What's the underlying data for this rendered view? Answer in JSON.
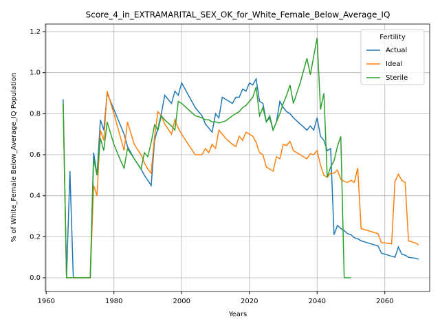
{
  "chart_data": {
    "type": "line",
    "title": "Score_4_in_EXTRAMARITAL_SEX_OK_for_White_Female_Below_Average_IQ",
    "xlabel": "Years",
    "ylabel": "% of White_Female Below_Average_IQ Population",
    "legend_title": "Fertility",
    "legend": "upper right",
    "x": [
      1965,
      1966,
      1967,
      1968,
      1969,
      1973,
      1974,
      1975,
      1976,
      1977,
      1978,
      1980,
      1982,
      1983,
      1984,
      1986,
      1988,
      1989,
      1990,
      1991,
      1992,
      1993,
      1994,
      1995,
      1997,
      1998,
      1999,
      2000,
      2002,
      2004,
      2006,
      2007,
      2008,
      2009,
      2010,
      2011,
      2012,
      2013,
      2015,
      2016,
      2017,
      2018,
      2019,
      2020,
      2021,
      2022,
      2023,
      2024,
      2025,
      2026,
      2027,
      2028,
      2029,
      2030,
      2031,
      2032,
      2033,
      2035,
      2037,
      2038,
      2039,
      2040,
      2041,
      2042,
      2043,
      2044,
      2045,
      2046,
      2047,
      2048,
      2049,
      2050,
      2051,
      2052,
      2053,
      2055,
      2058,
      2059,
      2060,
      2062,
      2063,
      2064,
      2065,
      2066,
      2067,
      2069,
      2070
    ],
    "series": [
      {
        "name": "Actual",
        "color": "#1f77b4",
        "values": [
          0.87,
          0,
          0.52,
          0,
          0,
          0,
          0.61,
          0.5,
          0.77,
          0.72,
          0.9,
          0.82,
          0.74,
          0.7,
          0.64,
          0.58,
          0.53,
          0.5,
          0.475,
          0.45,
          0.67,
          0.73,
          0.8,
          0.89,
          0.85,
          0.91,
          0.89,
          0.95,
          0.89,
          0.83,
          0.79,
          0.75,
          0.73,
          0.71,
          0.8,
          0.78,
          0.88,
          0.87,
          0.85,
          0.88,
          0.88,
          0.92,
          0.91,
          0.95,
          0.94,
          0.97,
          0.86,
          0.85,
          0.76,
          0.78,
          0.72,
          0.76,
          0.86,
          0.83,
          0.81,
          0.8,
          0.78,
          0.75,
          0.72,
          0.74,
          0.72,
          0.78,
          0.69,
          0.67,
          0.62,
          0.63,
          0.21,
          0.255,
          0.24,
          0.23,
          0.215,
          0.21,
          0.195,
          0.19,
          0.18,
          0.17,
          0.155,
          0.12,
          0.115,
          0.105,
          0.1,
          0.15,
          0.115,
          0.11,
          0.1,
          0.095,
          0.09
        ]
      },
      {
        "name": "Ideal",
        "color": "#ff7f0e",
        "values": [
          0.85,
          0,
          0,
          0,
          0,
          0,
          0.45,
          0.4,
          0.72,
          0.67,
          0.91,
          0.8,
          0.68,
          0.62,
          0.76,
          0.65,
          0.6,
          0.56,
          0.53,
          0.51,
          0.69,
          0.81,
          0.79,
          0.75,
          0.7,
          0.77,
          0.73,
          0.7,
          0.65,
          0.6,
          0.6,
          0.63,
          0.61,
          0.65,
          0.63,
          0.72,
          0.7,
          0.68,
          0.65,
          0.64,
          0.69,
          0.67,
          0.71,
          0.7,
          0.69,
          0.66,
          0.61,
          0.6,
          0.54,
          0.53,
          0.52,
          0.59,
          0.58,
          0.65,
          0.645,
          0.665,
          0.62,
          0.6,
          0.58,
          0.605,
          0.6,
          0.62,
          0.55,
          0.5,
          0.49,
          0.51,
          0.51,
          0.525,
          0.48,
          0.47,
          0.465,
          0.475,
          0.465,
          0.535,
          0.24,
          0.23,
          0.215,
          0.17,
          0.17,
          0.165,
          0.47,
          0.505,
          0.475,
          0.465,
          0.18,
          0.17,
          0.16
        ]
      },
      {
        "name": "Sterile",
        "color": "#2ca02c",
        "values": [
          0.85,
          0,
          0,
          0,
          0,
          0,
          0.58,
          0.5,
          0.68,
          0.62,
          0.76,
          0.65,
          0.57,
          0.535,
          0.63,
          0.58,
          0.53,
          0.61,
          0.59,
          0.66,
          0.745,
          0.72,
          0.79,
          0.77,
          0.74,
          0.72,
          0.86,
          0.85,
          0.82,
          0.79,
          0.78,
          0.77,
          0.77,
          0.76,
          0.76,
          0.755,
          0.76,
          0.765,
          0.79,
          0.8,
          0.81,
          0.83,
          0.84,
          0.86,
          0.88,
          0.93,
          0.79,
          0.83,
          0.76,
          0.79,
          0.72,
          0.76,
          0.8,
          0.85,
          0.89,
          0.94,
          0.85,
          0.95,
          1.07,
          0.99,
          1.08,
          1.17,
          0.82,
          0.9,
          0.49,
          0.54,
          0.57,
          0.64,
          0.69,
          0,
          0,
          0,
          null,
          null,
          null,
          null,
          null,
          null,
          null,
          null,
          null,
          null,
          null,
          null,
          null,
          null,
          null
        ]
      }
    ],
    "xlim": [
      1959.75,
      2073.25
    ],
    "xticks": [
      1960,
      1980,
      2000,
      2020,
      2040,
      2060
    ],
    "ylim": [
      -0.067,
      1.237
    ],
    "yticks": [
      {
        "value": 0,
        "label": "0.0"
      },
      {
        "value": 0.2,
        "label": "0.2"
      },
      {
        "value": 0.4,
        "label": "0.4"
      },
      {
        "value": 0.6,
        "label": "0.6"
      },
      {
        "value": 0.8,
        "label": "0.8"
      },
      {
        "value": 1,
        "label": "1.0"
      },
      {
        "value": 1.2,
        "label": "1.2"
      }
    ],
    "grid": true
  }
}
